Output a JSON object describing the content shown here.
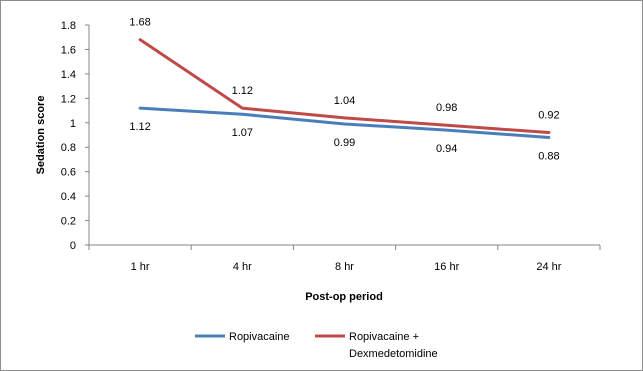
{
  "chart_data": {
    "type": "line",
    "categories": [
      "1 hr",
      "4 hr",
      "8 hr",
      "16 hr",
      "24 hr"
    ],
    "series": [
      {
        "name": "Ropivacaine",
        "color": "#4a7ebb",
        "values": [
          1.12,
          1.07,
          0.99,
          0.94,
          0.88
        ],
        "labels": [
          "1.12",
          "1.07",
          "0.99",
          "0.94",
          "0.88"
        ],
        "label_position": "below"
      },
      {
        "name": "Ropivacaine + Dexmedetomidine",
        "legend_lines": [
          "Ropivacaine +",
          "Dexmedetomidine"
        ],
        "color": "#be4b48",
        "values": [
          1.68,
          1.12,
          1.04,
          0.98,
          0.92
        ],
        "labels": [
          "1.68",
          "1.12",
          "1.04",
          "0.98",
          "0.92"
        ],
        "label_position": "above"
      }
    ],
    "xlabel": "Post-op period",
    "ylabel": "Sedation score",
    "ylim": [
      0,
      1.8
    ],
    "yticks": [
      "0",
      "0.2",
      "0.4",
      "0.6",
      "0.8",
      "1",
      "1.2",
      "1.4",
      "1.6",
      "1.8"
    ],
    "grid": false,
    "legend": "bottom"
  }
}
